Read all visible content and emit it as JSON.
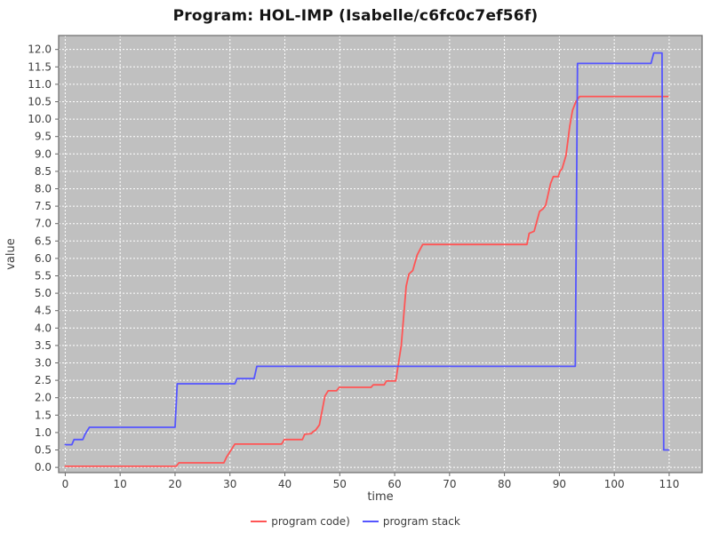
{
  "chart_data": {
    "type": "line",
    "title": "Program: HOL-IMP (Isabelle/c6fc0c7ef56f)",
    "xlabel": "time",
    "ylabel": "value",
    "xlim": [
      -1.2,
      116
    ],
    "ylim": [
      -0.15,
      12.4
    ],
    "x_ticks": [
      0,
      10,
      20,
      30,
      40,
      50,
      60,
      70,
      80,
      90,
      100,
      110
    ],
    "x_tick_labels": [
      "0",
      "10",
      "20",
      "30",
      "40",
      "50",
      "60",
      "70",
      "80",
      "90",
      "100",
      "110"
    ],
    "y_ticks": [
      0.0,
      0.5,
      1.0,
      1.5,
      2.0,
      2.5,
      3.0,
      3.5,
      4.0,
      4.5,
      5.0,
      5.5,
      6.0,
      6.5,
      7.0,
      7.5,
      8.0,
      8.5,
      9.0,
      9.5,
      10.0,
      10.5,
      11.0,
      11.5,
      12.0
    ],
    "y_tick_labels": [
      "0.0",
      "0.5",
      "1.0",
      "1.5",
      "2.0",
      "2.5",
      "3.0",
      "3.5",
      "4.0",
      "4.5",
      "5.0",
      "5.5",
      "6.0",
      "6.5",
      "7.0",
      "7.5",
      "8.0",
      "8.5",
      "9.0",
      "9.5",
      "10.0",
      "10.5",
      "11.0",
      "11.5",
      "12.0"
    ],
    "grid": true,
    "legend_position": "bottom",
    "colors": {
      "plot_bg": "#c0c0c0",
      "grid": "#ffffff",
      "plot_border": "#737373",
      "tick": "#666666",
      "text": "#3d3d3d"
    },
    "series": [
      {
        "name": "program code)",
        "color": "#ff5555",
        "points": [
          [
            0,
            0.03
          ],
          [
            20.2,
            0.03
          ],
          [
            20.7,
            0.13
          ],
          [
            28.9,
            0.13
          ],
          [
            29.4,
            0.3
          ],
          [
            30.9,
            0.67
          ],
          [
            39.4,
            0.67
          ],
          [
            39.9,
            0.8
          ],
          [
            43.2,
            0.8
          ],
          [
            43.6,
            0.95
          ],
          [
            44.8,
            0.97
          ],
          [
            45.1,
            1.02
          ],
          [
            45.6,
            1.07
          ],
          [
            46.3,
            1.22
          ],
          [
            47.3,
            2.05
          ],
          [
            47.9,
            2.2
          ],
          [
            49.4,
            2.2
          ],
          [
            49.9,
            2.3
          ],
          [
            55.7,
            2.3
          ],
          [
            56.1,
            2.37
          ],
          [
            58.1,
            2.37
          ],
          [
            58.5,
            2.48
          ],
          [
            60.2,
            2.48
          ],
          [
            61.2,
            3.5
          ],
          [
            62.1,
            5.2
          ],
          [
            62.6,
            5.55
          ],
          [
            63.3,
            5.65
          ],
          [
            64.1,
            6.1
          ],
          [
            64.6,
            6.25
          ],
          [
            65.1,
            6.4
          ],
          [
            84.1,
            6.4
          ],
          [
            84.5,
            6.72
          ],
          [
            85.4,
            6.78
          ],
          [
            86.4,
            7.35
          ],
          [
            87.0,
            7.42
          ],
          [
            87.5,
            7.52
          ],
          [
            87.9,
            7.8
          ],
          [
            88.4,
            8.15
          ],
          [
            88.9,
            8.35
          ],
          [
            89.8,
            8.35
          ],
          [
            90.1,
            8.5
          ],
          [
            90.5,
            8.58
          ],
          [
            91.2,
            8.95
          ],
          [
            91.9,
            9.8
          ],
          [
            92.4,
            10.25
          ],
          [
            93.0,
            10.5
          ],
          [
            93.7,
            10.65
          ],
          [
            109.8,
            10.65
          ]
        ]
      },
      {
        "name": "program stack",
        "color": "#5555ff",
        "points": [
          [
            0,
            0.65
          ],
          [
            1.2,
            0.65
          ],
          [
            1.6,
            0.8
          ],
          [
            3.2,
            0.8
          ],
          [
            3.6,
            0.95
          ],
          [
            4.4,
            1.15
          ],
          [
            20.0,
            1.15
          ],
          [
            20.4,
            2.4
          ],
          [
            30.9,
            2.4
          ],
          [
            31.3,
            2.55
          ],
          [
            34.4,
            2.55
          ],
          [
            34.9,
            2.9
          ],
          [
            92.9,
            2.9
          ],
          [
            93.3,
            11.6
          ],
          [
            106.7,
            11.6
          ],
          [
            107.2,
            11.9
          ],
          [
            108.7,
            11.9
          ],
          [
            109.0,
            0.5
          ],
          [
            109.9,
            0.5
          ]
        ]
      }
    ]
  }
}
